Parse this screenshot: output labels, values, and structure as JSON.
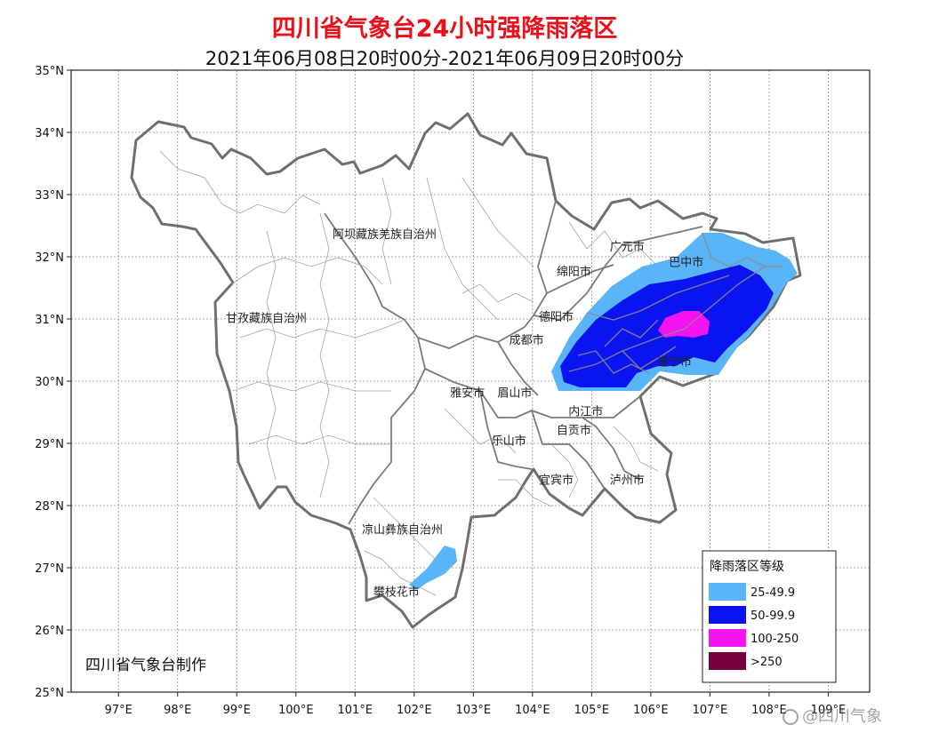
{
  "title": "四川省气象台24小时强降雨落区",
  "subtitle": "2021年06月08日20时00分-2021年06月09日20时00分",
  "producer": "四川省气象台制作",
  "watermark": "@四川气象",
  "axes": {
    "lat_labels": [
      "35°N",
      "34°N",
      "33°N",
      "32°N",
      "31°N",
      "30°N",
      "29°N",
      "28°N",
      "27°N",
      "26°N",
      "25°N"
    ],
    "lon_labels": [
      "97°E",
      "98°E",
      "99°E",
      "100°E",
      "101°E",
      "102°E",
      "103°E",
      "104°E",
      "105°E",
      "106°E",
      "107°E",
      "108°E",
      "109°E"
    ],
    "lat_range": [
      25,
      35
    ],
    "lon_range": [
      96.2,
      109.7
    ],
    "grid": "dotted"
  },
  "regions": [
    {
      "name": "阿坝藏族羌族自治州",
      "lon": 101.5,
      "lat": 32.3
    },
    {
      "name": "甘孜藏族自治州",
      "lon": 99.5,
      "lat": 30.95
    },
    {
      "name": "凉山彝族自治州",
      "lon": 101.8,
      "lat": 27.55
    },
    {
      "name": "攀枝花市",
      "lon": 101.7,
      "lat": 26.55
    },
    {
      "name": "广元市",
      "lon": 105.6,
      "lat": 32.1
    },
    {
      "name": "绵阳市",
      "lon": 104.7,
      "lat": 31.7
    },
    {
      "name": "巴中市",
      "lon": 106.6,
      "lat": 31.85
    },
    {
      "name": "德阳市",
      "lon": 104.4,
      "lat": 30.97
    },
    {
      "name": "成都市",
      "lon": 103.9,
      "lat": 30.6
    },
    {
      "name": "遂宁市",
      "lon": 106.4,
      "lat": 30.25
    },
    {
      "name": "雅安市",
      "lon": 102.9,
      "lat": 29.75
    },
    {
      "name": "眉山市",
      "lon": 103.7,
      "lat": 29.75
    },
    {
      "name": "内江市",
      "lon": 104.9,
      "lat": 29.45
    },
    {
      "name": "自贡市",
      "lon": 104.7,
      "lat": 29.15
    },
    {
      "name": "乐山市",
      "lon": 103.6,
      "lat": 28.98
    },
    {
      "name": "宜宾市",
      "lon": 104.4,
      "lat": 28.35
    },
    {
      "name": "泸州市",
      "lon": 105.6,
      "lat": 28.35
    }
  ],
  "legend": {
    "title": "降雨落区等级",
    "items": [
      {
        "label": "25-49.9",
        "color": "#5ab4f8"
      },
      {
        "label": "50-99.9",
        "color": "#0a14f0"
      },
      {
        "label": "100-250",
        "color": "#f514f0"
      },
      {
        "label": ">250",
        "color": "#78003c"
      }
    ]
  },
  "colors": {
    "title": "#e8101a",
    "border_outer": "#6f6f6f",
    "border_inner": "#9a9a9a"
  }
}
